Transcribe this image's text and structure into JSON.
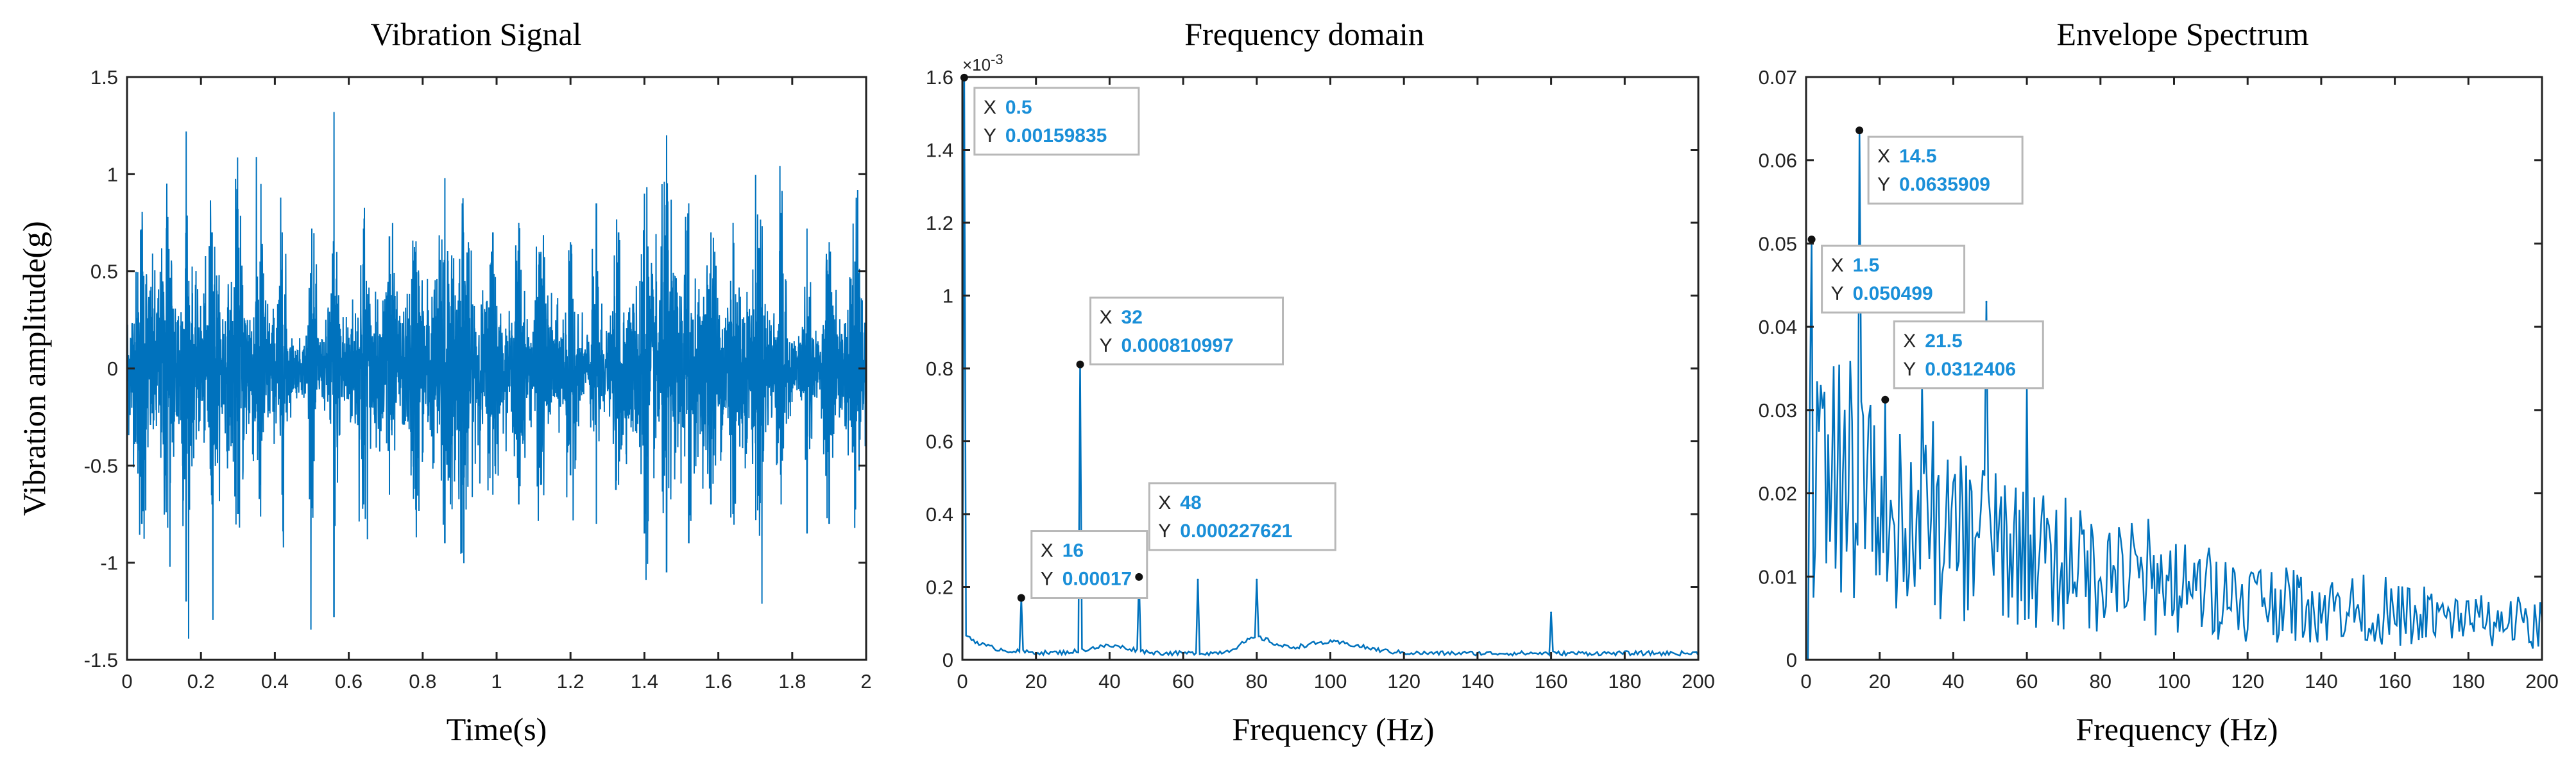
{
  "colors": {
    "series": "#0072BD",
    "datatip_value": "#1a8fd8"
  },
  "chart_data": [
    {
      "type": "line",
      "title": "Vibration Signal",
      "xlabel": "Time(s)",
      "ylabel": "Vibration amplitude(g)",
      "xlim": [
        0,
        2
      ],
      "ylim": [
        -1.5,
        1.5
      ],
      "xticks": [
        0,
        0.2,
        0.4,
        0.6,
        0.8,
        1,
        1.2,
        1.4,
        1.6,
        1.8,
        2
      ],
      "xtick_labels": [
        "0",
        "0.2",
        "0.4",
        "0.6",
        "0.8",
        "1",
        "1.2",
        "1.4",
        "1.6",
        "1.8",
        "2"
      ],
      "yticks": [
        -1.5,
        -1,
        -0.5,
        0,
        0.5,
        1,
        1.5
      ],
      "ytick_labels": [
        "-1.5",
        "-1",
        "-0.5",
        "0",
        "0.5",
        "1",
        "1.5"
      ],
      "signal": {
        "duration": 2,
        "burst_times": [
          0.04,
          0.11,
          0.16,
          0.23,
          0.3,
          0.36,
          0.42,
          0.5,
          0.56,
          0.64,
          0.71,
          0.78,
          0.86,
          0.91,
          0.99,
          1.06,
          1.12,
          1.2,
          1.27,
          1.33,
          1.4,
          1.46,
          1.52,
          1.58,
          1.64,
          1.71,
          1.77,
          1.84,
          1.9,
          1.97
        ],
        "burst_peaks": [
          0.62,
          0.78,
          1.22,
          0.7,
          0.82,
          0.55,
          0.7,
          0.72,
          1.32,
          0.72,
          0.68,
          0.6,
          0.98,
          0.7,
          0.7,
          0.75,
          0.6,
          0.65,
          0.85,
          0.7,
          0.9,
          1.2,
          0.85,
          0.7,
          0.75,
          0.62,
          0.8,
          0.72,
          0.65,
          0.55
        ],
        "burst_troughs": [
          -0.8,
          -0.82,
          -1.2,
          -0.7,
          -0.75,
          -0.6,
          -0.65,
          -0.72,
          -1.28,
          -0.7,
          -0.65,
          -0.62,
          -0.9,
          -0.6,
          -0.65,
          -0.7,
          -0.6,
          -0.55,
          -0.8,
          -0.6,
          -0.85,
          -1.05,
          -0.9,
          -0.7,
          -0.75,
          -0.6,
          -0.7,
          -0.85,
          -0.8,
          -0.62
        ]
      }
    },
    {
      "type": "line",
      "title": "Frequency domain",
      "xlabel": "Frequency (Hz)",
      "ylabel": "",
      "xlim": [
        0,
        200
      ],
      "ylim": [
        0,
        0.0016
      ],
      "y_exponent_label": "×10",
      "y_exponent_power": "-3",
      "xticks": [
        0,
        20,
        40,
        60,
        80,
        100,
        120,
        140,
        160,
        180,
        200
      ],
      "xtick_labels": [
        "0",
        "20",
        "40",
        "60",
        "80",
        "100",
        "120",
        "140",
        "160",
        "180",
        "200"
      ],
      "yticks": [
        0,
        0.0002,
        0.0004,
        0.0006,
        0.0008,
        0.001,
        0.0012,
        0.0014,
        0.0016
      ],
      "ytick_labels": [
        "0",
        "0.2",
        "0.4",
        "0.6",
        "0.8",
        "1",
        "1.2",
        "1.4",
        "1.6"
      ],
      "peaks": [
        {
          "x": 0.5,
          "y": 0.00159835
        },
        {
          "x": 16,
          "y": 0.00017
        },
        {
          "x": 32,
          "y": 0.000810997
        },
        {
          "x": 48,
          "y": 0.000227621
        },
        {
          "x": 64,
          "y": 0.00022
        },
        {
          "x": 80,
          "y": 0.00022
        },
        {
          "x": 160,
          "y": 0.00013
        }
      ],
      "datatips": [
        {
          "x": "0.5",
          "y": "0.00159835"
        },
        {
          "x": "32",
          "y": "0.000810997"
        },
        {
          "x": "16",
          "y": "0.00017"
        },
        {
          "x": "48",
          "y": "0.000227621"
        }
      ]
    },
    {
      "type": "line",
      "title": "Envelope Spectrum",
      "xlabel": "Frequency (Hz)",
      "ylabel": "",
      "xlim": [
        0,
        200
      ],
      "ylim": [
        0,
        0.07
      ],
      "xticks": [
        0,
        20,
        40,
        60,
        80,
        100,
        120,
        140,
        160,
        180,
        200
      ],
      "xtick_labels": [
        "0",
        "20",
        "40",
        "60",
        "80",
        "100",
        "120",
        "140",
        "160",
        "180",
        "200"
      ],
      "yticks": [
        0,
        0.01,
        0.02,
        0.03,
        0.04,
        0.05,
        0.06,
        0.07
      ],
      "ytick_labels": [
        "0",
        "0.01",
        "0.02",
        "0.03",
        "0.04",
        "0.05",
        "0.06",
        "0.07"
      ],
      "peaks": [
        {
          "x": 1.5,
          "y": 0.050499
        },
        {
          "x": 14.5,
          "y": 0.0635909
        },
        {
          "x": 21.5,
          "y": 0.0312406
        },
        {
          "x": 49,
          "y": 0.043
        },
        {
          "x": 60,
          "y": 0.033
        }
      ],
      "datatips": [
        {
          "x": "14.5",
          "y": "0.0635909"
        },
        {
          "x": "1.5",
          "y": "0.050499"
        },
        {
          "x": "21.5",
          "y": "0.0312406"
        }
      ]
    }
  ]
}
